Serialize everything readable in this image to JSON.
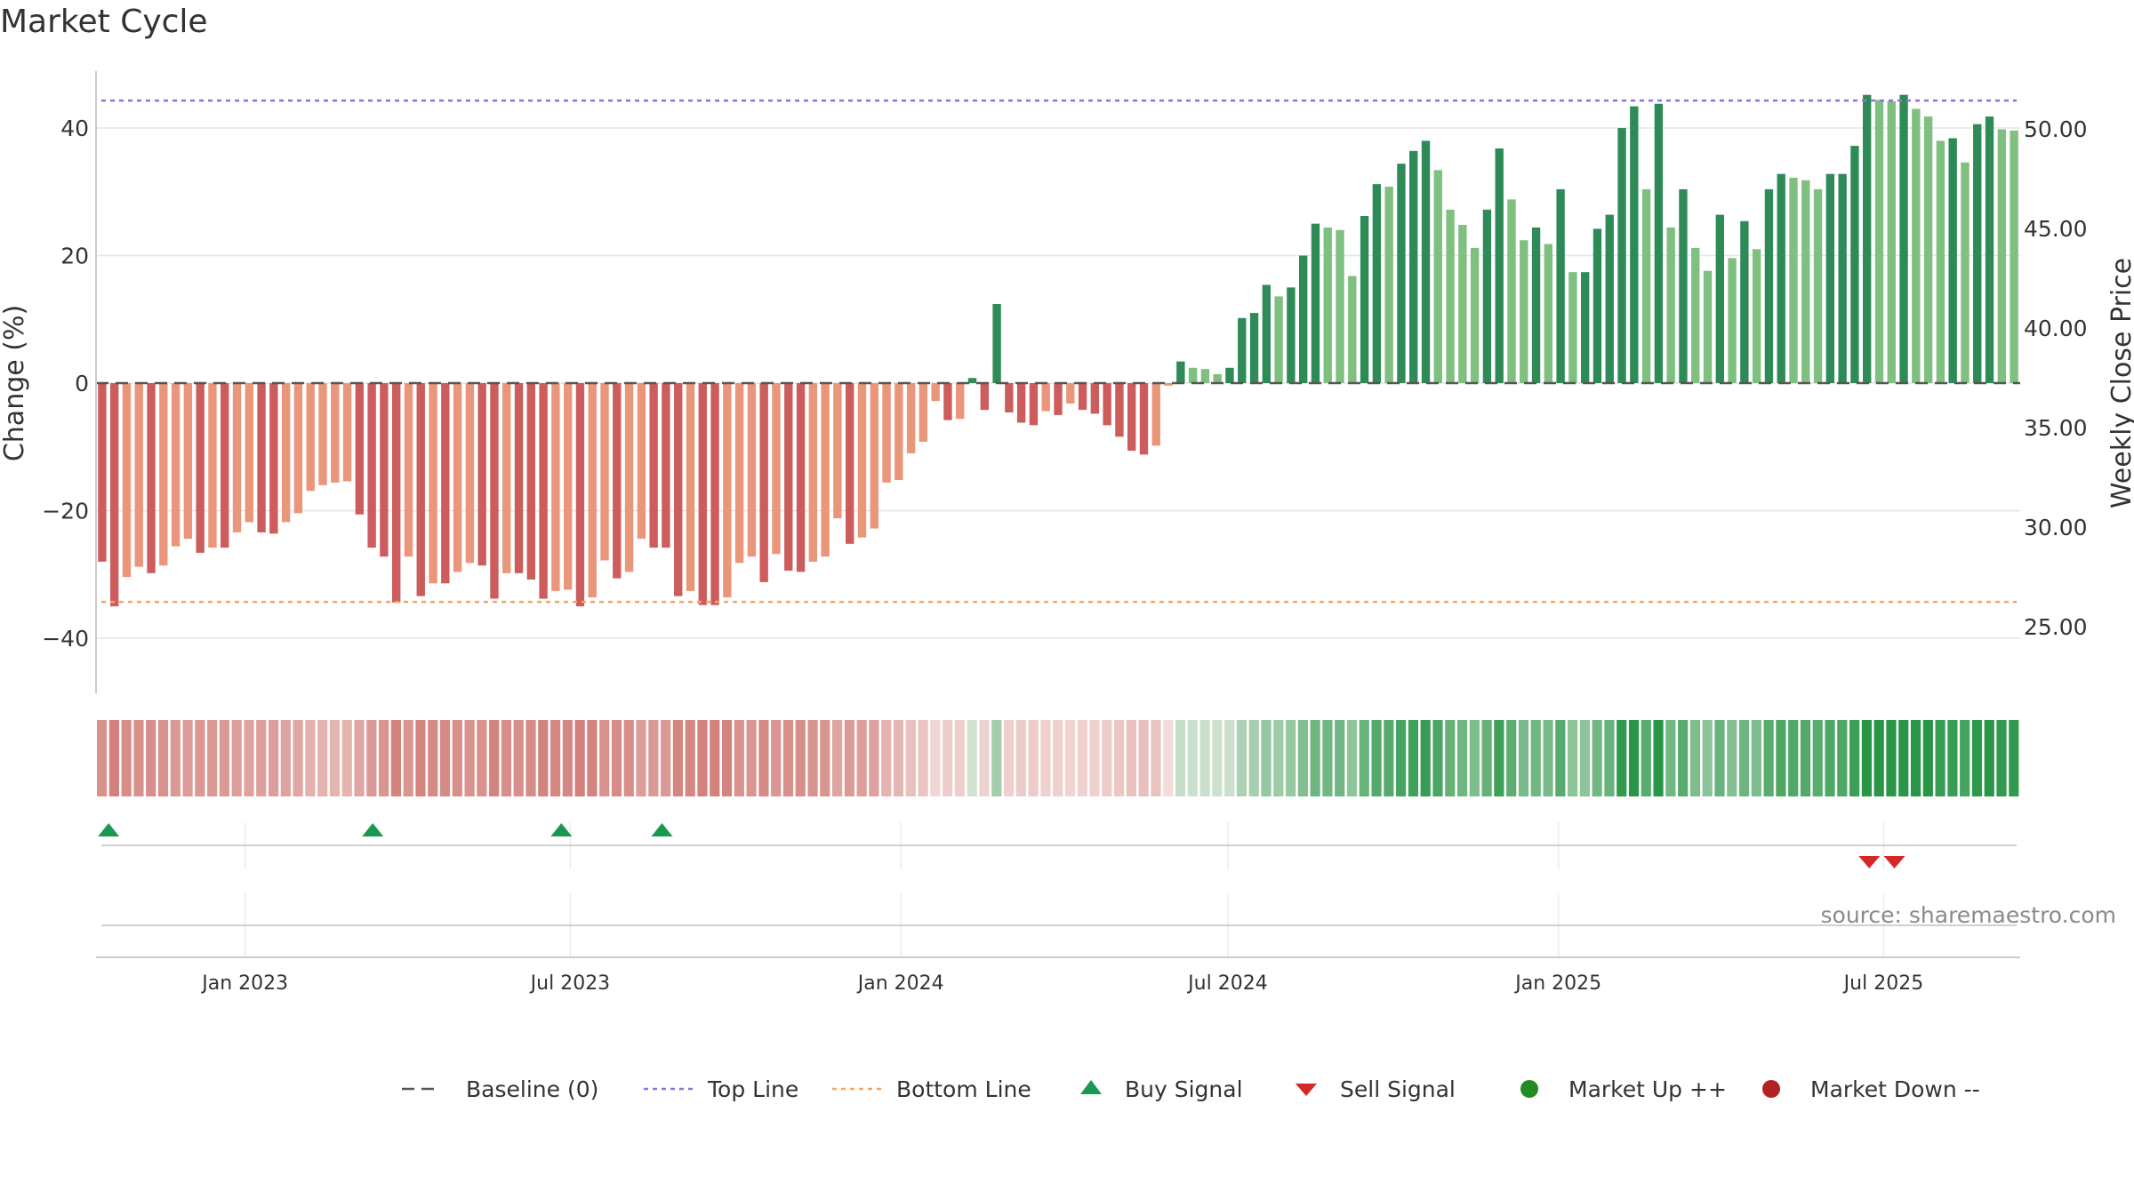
{
  "chart_data": {
    "type": "bar",
    "title": "Market Cycle",
    "ylabel_left": "Change (%)",
    "ylabel_right": "Weekly Close Price",
    "ylim_left": [
      -48,
      48
    ],
    "ylim_right": [
      22.2,
      53.0
    ],
    "yticks_left": [
      {
        "value": 40,
        "label": "40"
      },
      {
        "value": 20,
        "label": "20"
      },
      {
        "value": 0,
        "label": "0"
      },
      {
        "value": -20,
        "label": "−20"
      },
      {
        "value": -40,
        "label": "−40"
      }
    ],
    "yticks_right": [
      {
        "value": 50,
        "label": "50.00"
      },
      {
        "value": 45,
        "label": "45.00"
      },
      {
        "value": 40,
        "label": "40.00"
      },
      {
        "value": 35,
        "label": "35.00"
      },
      {
        "value": 30,
        "label": "30.00"
      },
      {
        "value": 25,
        "label": "25.00"
      }
    ],
    "x_start": "2022-10-10",
    "week_days": 7,
    "x_end": "2025-09-15",
    "xticks": [
      {
        "date": "2023-01-01",
        "label": "Jan 2023"
      },
      {
        "date": "2023-07-01",
        "label": "Jul 2023"
      },
      {
        "date": "2024-01-01",
        "label": "Jan 2024"
      },
      {
        "date": "2024-07-01",
        "label": "Jul 2024"
      },
      {
        "date": "2025-01-01",
        "label": "Jan 2025"
      },
      {
        "date": "2025-07-01",
        "label": "Jul 2025"
      }
    ],
    "top_line": 44.3,
    "bottom_line": -34.3,
    "baseline": 0,
    "grid": true,
    "values": [
      -28,
      -35,
      -30.4,
      -28.8,
      -29.8,
      -28.6,
      -25.6,
      -24.4,
      -26.6,
      -25.8,
      -25.8,
      -23.4,
      -21.8,
      -23.4,
      -23.6,
      -21.8,
      -20.4,
      -16.9,
      -16,
      -15.6,
      -15.4,
      -20.6,
      -25.8,
      -27.2,
      -34.4,
      -27.2,
      -33.4,
      -31.4,
      -31.4,
      -29.6,
      -28.2,
      -28.6,
      -33.8,
      -29.8,
      -29.8,
      -30.8,
      -33.8,
      -32.6,
      -32.4,
      -35,
      -33.6,
      -27.8,
      -30.6,
      -29.6,
      -24.4,
      -25.8,
      -25.8,
      -33.4,
      -32.6,
      -34.8,
      -34.8,
      -33.6,
      -28.2,
      -27.2,
      -31.2,
      -26.8,
      -29.4,
      -29.6,
      -28,
      -27.2,
      -21.2,
      -25.2,
      -24.2,
      -22.8,
      -15.6,
      -15.2,
      -11,
      -9.2,
      -2.8,
      -5.8,
      -5.6,
      0.8,
      -4.2,
      12.4,
      -4.6,
      -6.2,
      -6.6,
      -4.4,
      -5,
      -3.2,
      -4.2,
      -4.8,
      -6.6,
      -8.4,
      -10.6,
      -11.2,
      -9.8,
      -0.4,
      3.4,
      2.4,
      2.2,
      1.4,
      2.4,
      10.2,
      11,
      15.4,
      13.6,
      15,
      20,
      25,
      24.4,
      24,
      16.8,
      26.2,
      31.2,
      30.8,
      34.4,
      36.4,
      38,
      33.4,
      27.2,
      24.8,
      21.2,
      27.2,
      36.8,
      28.8,
      22.4,
      24.4,
      21.8,
      30.4,
      17.4,
      17.4,
      24.2,
      26.4,
      40,
      43.4,
      30.4,
      43.8,
      24.4,
      30.4,
      21.2,
      17.6,
      26.4,
      19.6,
      25.4,
      21,
      30.4,
      32.8,
      32.2,
      31.8,
      30.4,
      32.8,
      32.8,
      37.2,
      45.2,
      44.4,
      44.2,
      45.2,
      43,
      41.8,
      38,
      38.4,
      34.6,
      40.6,
      41.8,
      39.8,
      39.6
    ],
    "buy_signals": [
      "2022-10-17",
      "2023-03-13",
      "2023-06-26",
      "2023-08-21"
    ],
    "sell_signals": [
      "2025-06-23",
      "2025-07-07"
    ],
    "heat_strip": "weekly bullish/bearish intensity band",
    "colors": {
      "up_strong": "#2e8b57",
      "up_weak": "#7fbf7f",
      "down_strong": "#cd5c5c",
      "down_weak": "#e9967a",
      "top_line": "#9370db",
      "bottom_line": "#f4a460",
      "baseline": "#555555",
      "buy": "#1a9850",
      "sell": "#d62728",
      "market_up": "#228b22",
      "market_down": "#b22222"
    },
    "legend": {
      "placement": "bottom",
      "items": [
        {
          "label": "Baseline (0)",
          "marker": "dash"
        },
        {
          "label": "Top Line",
          "marker": "dotted-purple"
        },
        {
          "label": "Bottom Line",
          "marker": "dotted-orange"
        },
        {
          "label": "Buy Signal",
          "marker": "triangle-up"
        },
        {
          "label": "Sell Signal",
          "marker": "triangle-down"
        },
        {
          "label": "Market Up ++",
          "marker": "circle-green"
        },
        {
          "label": "Market Down --",
          "marker": "circle-red"
        }
      ]
    },
    "annotation": "source: sharemaestro.com"
  }
}
